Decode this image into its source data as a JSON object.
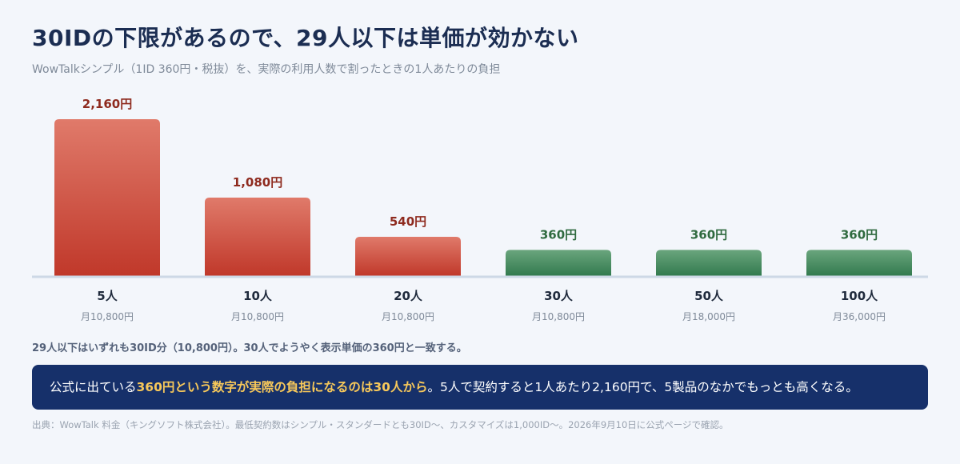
{
  "title": "30IDの下限があるので、29人以下は単価が効かない",
  "subtitle": "WowTalkシンプル（1ID 360円・税抜）を、実際の利用人数で割ったときの1人あたりの負担",
  "chart_data": {
    "type": "bar",
    "categories": [
      "5人",
      "10人",
      "20人",
      "30人",
      "50人",
      "100人"
    ],
    "values": [
      2160,
      1080,
      540,
      360,
      360,
      360
    ],
    "value_labels": [
      "2,160円",
      "1,080円",
      "540円",
      "360円",
      "360円",
      "360円"
    ],
    "monthly_labels": [
      "月10,800円",
      "月10,800円",
      "月10,800円",
      "月10,800円",
      "月18,000円",
      "月36,000円"
    ],
    "ylim": [
      0,
      2160
    ],
    "grid": false,
    "colors": {
      "above_minimum": "#c9392b",
      "at_unit_price": "#3b8358",
      "above_minimum_label": "#8e2a1e",
      "at_unit_price_label": "#2f6a3f"
    }
  },
  "note": "29人以下はいずれも30ID分（10,800円）。30人でようやく表示単価の360円と一致する。",
  "callout": {
    "lead": "公式に出ている",
    "highlight": "360円という数字が実際の負担になるのは30人から",
    "tail": "。5人で契約すると1人あたり2,160円で、5製品のなかでもっとも高くなる。"
  },
  "source": "出典：WowTalk 料金（キングソフト株式会社）。最低契約数はシンプル・スタンダードとも30ID〜、カスタマイズは1,000ID〜。2026年9月10日に公式ページで確認。"
}
